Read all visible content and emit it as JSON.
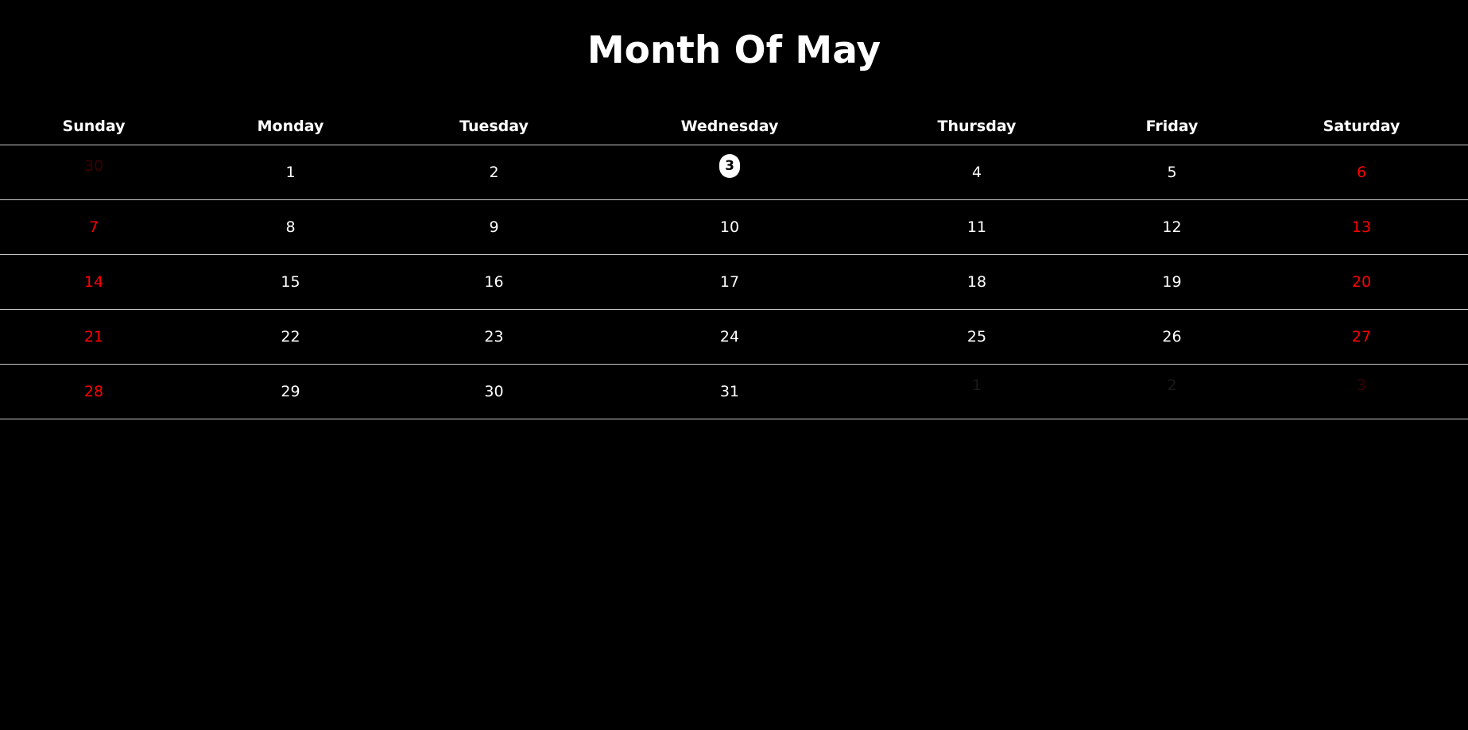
{
  "title": "Month Of May",
  "colors": {
    "background": "#000000",
    "text": "#ffffff",
    "weekend": "#ff0000",
    "today_bg": "#ffffff",
    "today_text": "#000000"
  },
  "weekdays": [
    "Sunday",
    "Monday",
    "Tuesday",
    "Wednesday",
    "Thursday",
    "Friday",
    "Saturday"
  ],
  "weeks": [
    [
      {
        "d": "30",
        "out": true
      },
      {
        "d": "1"
      },
      {
        "d": "2"
      },
      {
        "d": "3",
        "today": true
      },
      {
        "d": "4"
      },
      {
        "d": "5"
      },
      {
        "d": "6"
      }
    ],
    [
      {
        "d": "7"
      },
      {
        "d": "8"
      },
      {
        "d": "9"
      },
      {
        "d": "10"
      },
      {
        "d": "11"
      },
      {
        "d": "12"
      },
      {
        "d": "13"
      }
    ],
    [
      {
        "d": "14"
      },
      {
        "d": "15"
      },
      {
        "d": "16"
      },
      {
        "d": "17"
      },
      {
        "d": "18"
      },
      {
        "d": "19"
      },
      {
        "d": "20"
      }
    ],
    [
      {
        "d": "21"
      },
      {
        "d": "22"
      },
      {
        "d": "23"
      },
      {
        "d": "24"
      },
      {
        "d": "25"
      },
      {
        "d": "26"
      },
      {
        "d": "27"
      }
    ],
    [
      {
        "d": "28"
      },
      {
        "d": "29"
      },
      {
        "d": "30"
      },
      {
        "d": "31"
      },
      {
        "d": "1",
        "out": true
      },
      {
        "d": "2",
        "out": true
      },
      {
        "d": "3",
        "out": true
      }
    ]
  ]
}
